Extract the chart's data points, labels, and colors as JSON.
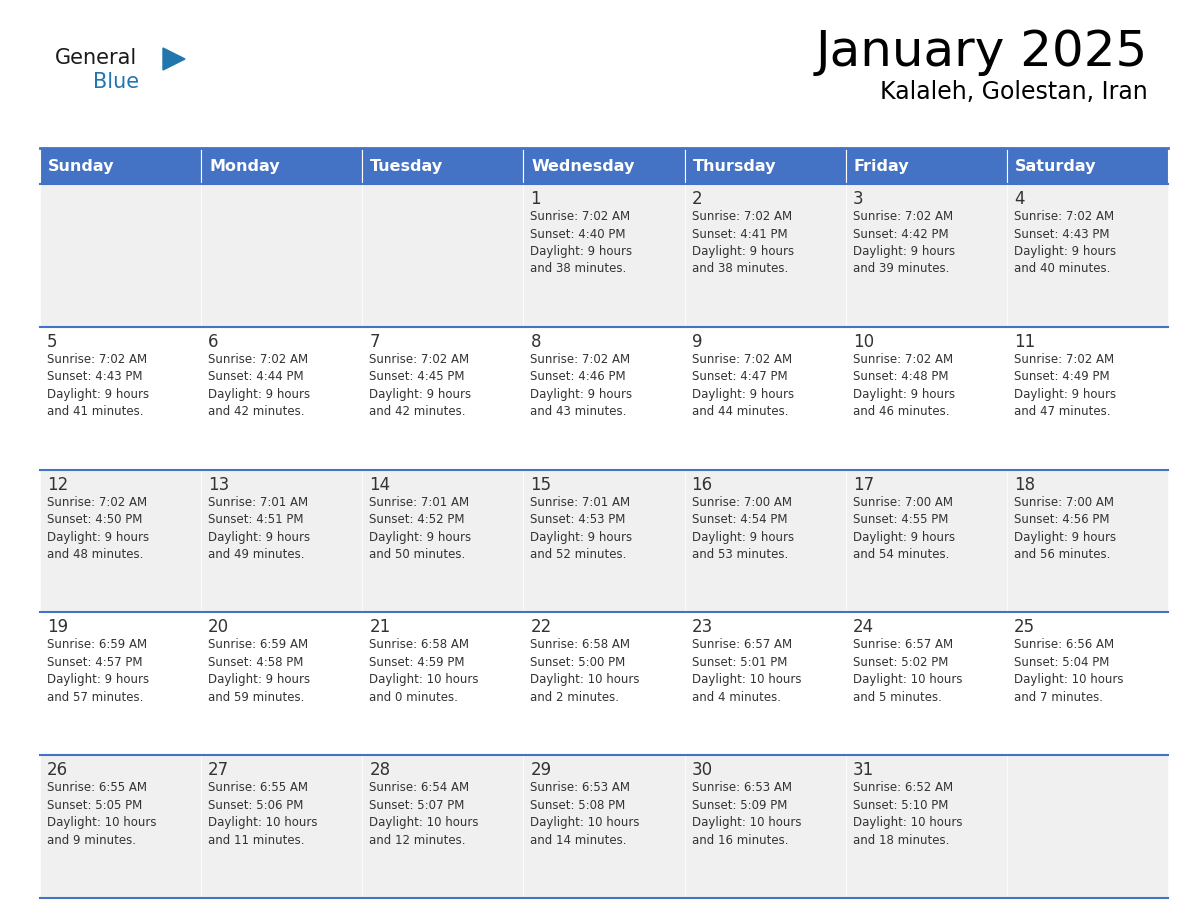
{
  "title": "January 2025",
  "subtitle": "Kalaleh, Golestan, Iran",
  "days_of_week": [
    "Sunday",
    "Monday",
    "Tuesday",
    "Wednesday",
    "Thursday",
    "Friday",
    "Saturday"
  ],
  "header_bg": "#4472C4",
  "header_text_color": "#FFFFFF",
  "cell_bg_odd": "#F0F0F0",
  "cell_bg_even": "#FFFFFF",
  "separator_color": "#4472C4",
  "text_color": "#333333",
  "calendar_data": [
    [
      {
        "day": "",
        "sunrise": "",
        "sunset": "",
        "daylight": ""
      },
      {
        "day": "",
        "sunrise": "",
        "sunset": "",
        "daylight": ""
      },
      {
        "day": "",
        "sunrise": "",
        "sunset": "",
        "daylight": ""
      },
      {
        "day": "1",
        "sunrise": "Sunrise: 7:02 AM",
        "sunset": "Sunset: 4:40 PM",
        "daylight": "Daylight: 9 hours\nand 38 minutes."
      },
      {
        "day": "2",
        "sunrise": "Sunrise: 7:02 AM",
        "sunset": "Sunset: 4:41 PM",
        "daylight": "Daylight: 9 hours\nand 38 minutes."
      },
      {
        "day": "3",
        "sunrise": "Sunrise: 7:02 AM",
        "sunset": "Sunset: 4:42 PM",
        "daylight": "Daylight: 9 hours\nand 39 minutes."
      },
      {
        "day": "4",
        "sunrise": "Sunrise: 7:02 AM",
        "sunset": "Sunset: 4:43 PM",
        "daylight": "Daylight: 9 hours\nand 40 minutes."
      }
    ],
    [
      {
        "day": "5",
        "sunrise": "Sunrise: 7:02 AM",
        "sunset": "Sunset: 4:43 PM",
        "daylight": "Daylight: 9 hours\nand 41 minutes."
      },
      {
        "day": "6",
        "sunrise": "Sunrise: 7:02 AM",
        "sunset": "Sunset: 4:44 PM",
        "daylight": "Daylight: 9 hours\nand 42 minutes."
      },
      {
        "day": "7",
        "sunrise": "Sunrise: 7:02 AM",
        "sunset": "Sunset: 4:45 PM",
        "daylight": "Daylight: 9 hours\nand 42 minutes."
      },
      {
        "day": "8",
        "sunrise": "Sunrise: 7:02 AM",
        "sunset": "Sunset: 4:46 PM",
        "daylight": "Daylight: 9 hours\nand 43 minutes."
      },
      {
        "day": "9",
        "sunrise": "Sunrise: 7:02 AM",
        "sunset": "Sunset: 4:47 PM",
        "daylight": "Daylight: 9 hours\nand 44 minutes."
      },
      {
        "day": "10",
        "sunrise": "Sunrise: 7:02 AM",
        "sunset": "Sunset: 4:48 PM",
        "daylight": "Daylight: 9 hours\nand 46 minutes."
      },
      {
        "day": "11",
        "sunrise": "Sunrise: 7:02 AM",
        "sunset": "Sunset: 4:49 PM",
        "daylight": "Daylight: 9 hours\nand 47 minutes."
      }
    ],
    [
      {
        "day": "12",
        "sunrise": "Sunrise: 7:02 AM",
        "sunset": "Sunset: 4:50 PM",
        "daylight": "Daylight: 9 hours\nand 48 minutes."
      },
      {
        "day": "13",
        "sunrise": "Sunrise: 7:01 AM",
        "sunset": "Sunset: 4:51 PM",
        "daylight": "Daylight: 9 hours\nand 49 minutes."
      },
      {
        "day": "14",
        "sunrise": "Sunrise: 7:01 AM",
        "sunset": "Sunset: 4:52 PM",
        "daylight": "Daylight: 9 hours\nand 50 minutes."
      },
      {
        "day": "15",
        "sunrise": "Sunrise: 7:01 AM",
        "sunset": "Sunset: 4:53 PM",
        "daylight": "Daylight: 9 hours\nand 52 minutes."
      },
      {
        "day": "16",
        "sunrise": "Sunrise: 7:00 AM",
        "sunset": "Sunset: 4:54 PM",
        "daylight": "Daylight: 9 hours\nand 53 minutes."
      },
      {
        "day": "17",
        "sunrise": "Sunrise: 7:00 AM",
        "sunset": "Sunset: 4:55 PM",
        "daylight": "Daylight: 9 hours\nand 54 minutes."
      },
      {
        "day": "18",
        "sunrise": "Sunrise: 7:00 AM",
        "sunset": "Sunset: 4:56 PM",
        "daylight": "Daylight: 9 hours\nand 56 minutes."
      }
    ],
    [
      {
        "day": "19",
        "sunrise": "Sunrise: 6:59 AM",
        "sunset": "Sunset: 4:57 PM",
        "daylight": "Daylight: 9 hours\nand 57 minutes."
      },
      {
        "day": "20",
        "sunrise": "Sunrise: 6:59 AM",
        "sunset": "Sunset: 4:58 PM",
        "daylight": "Daylight: 9 hours\nand 59 minutes."
      },
      {
        "day": "21",
        "sunrise": "Sunrise: 6:58 AM",
        "sunset": "Sunset: 4:59 PM",
        "daylight": "Daylight: 10 hours\nand 0 minutes."
      },
      {
        "day": "22",
        "sunrise": "Sunrise: 6:58 AM",
        "sunset": "Sunset: 5:00 PM",
        "daylight": "Daylight: 10 hours\nand 2 minutes."
      },
      {
        "day": "23",
        "sunrise": "Sunrise: 6:57 AM",
        "sunset": "Sunset: 5:01 PM",
        "daylight": "Daylight: 10 hours\nand 4 minutes."
      },
      {
        "day": "24",
        "sunrise": "Sunrise: 6:57 AM",
        "sunset": "Sunset: 5:02 PM",
        "daylight": "Daylight: 10 hours\nand 5 minutes."
      },
      {
        "day": "25",
        "sunrise": "Sunrise: 6:56 AM",
        "sunset": "Sunset: 5:04 PM",
        "daylight": "Daylight: 10 hours\nand 7 minutes."
      }
    ],
    [
      {
        "day": "26",
        "sunrise": "Sunrise: 6:55 AM",
        "sunset": "Sunset: 5:05 PM",
        "daylight": "Daylight: 10 hours\nand 9 minutes."
      },
      {
        "day": "27",
        "sunrise": "Sunrise: 6:55 AM",
        "sunset": "Sunset: 5:06 PM",
        "daylight": "Daylight: 10 hours\nand 11 minutes."
      },
      {
        "day": "28",
        "sunrise": "Sunrise: 6:54 AM",
        "sunset": "Sunset: 5:07 PM",
        "daylight": "Daylight: 10 hours\nand 12 minutes."
      },
      {
        "day": "29",
        "sunrise": "Sunrise: 6:53 AM",
        "sunset": "Sunset: 5:08 PM",
        "daylight": "Daylight: 10 hours\nand 14 minutes."
      },
      {
        "day": "30",
        "sunrise": "Sunrise: 6:53 AM",
        "sunset": "Sunset: 5:09 PM",
        "daylight": "Daylight: 10 hours\nand 16 minutes."
      },
      {
        "day": "31",
        "sunrise": "Sunrise: 6:52 AM",
        "sunset": "Sunset: 5:10 PM",
        "daylight": "Daylight: 10 hours\nand 18 minutes."
      },
      {
        "day": "",
        "sunrise": "",
        "sunset": "",
        "daylight": ""
      }
    ]
  ],
  "logo_color1": "#1a1a1a",
  "logo_color2": "#2176AE",
  "logo_triangle_color": "#2176AE"
}
